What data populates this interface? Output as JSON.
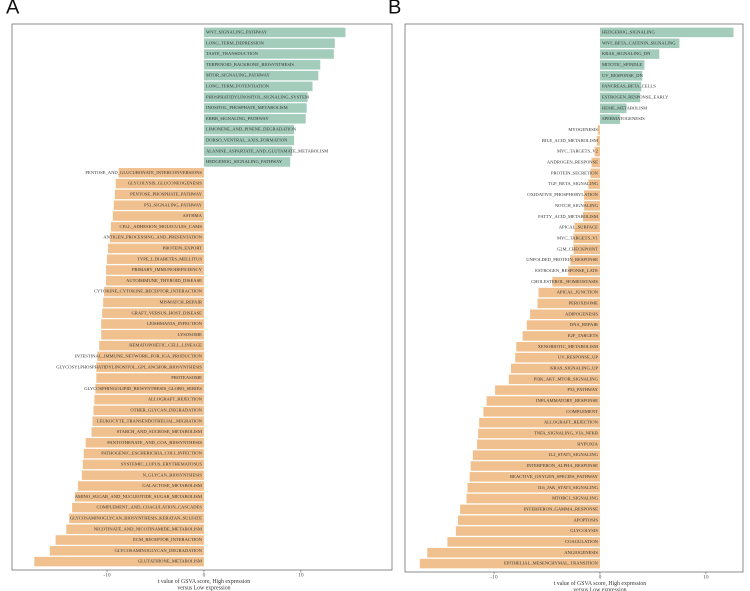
{
  "chart_data": [
    {
      "type": "bar",
      "orientation": "horizontal",
      "panel_label": "A",
      "categories": [
        "WNT_SIGNALING_PATHWAY",
        "LONG_TERM_DEPRESSION",
        "TASTE_TRANSDUCTION",
        "TERPENOID_BACKBONE_BIOSYNTHESIS",
        "MTOR_SIGNALING_PATHWAY",
        "LONG_TERM_POTENTIATION",
        "PHOSPHATIDYLINOSITOL_SIGNALING_SYSTEM",
        "INOSITOL_PHOSPHATE_METABOLISM",
        "ERBB_SIGNALING_PATHWAY",
        "LIMONENE_AND_PINENE_DEGRADATION",
        "DORSO_VENTRAL_AXIS_FORMATION",
        "ALANINE_ASPARTATE_AND_GLUTAMATE_METABOLISM",
        "HEDGEHOG_SIGNALING_PATHWAY",
        "PENTOSE_AND_GLUCURONATE_INTERCONVERSIONS",
        "GLYCOLYSIS_GLUCONEOGENESIS",
        "PENTOSE_PHOSPHATE_PATHWAY",
        "P53_SIGNALING_PATHWAY",
        "ASTHMA",
        "CELL_ADHESION_MOLECULES_CAMS",
        "ANTIGEN_PROCESSING_AND_PRESENTATION",
        "PROTEIN_EXPORT",
        "TYPE_I_DIABETES_MELLITUS",
        "PRIMARY_IMMUNODEFICIENCY",
        "AUTOIMMUNE_THYROID_DISEASE",
        "CYTOKINE_CYTOKINE_RECEPTOR_INTERACTION",
        "MISMATCH_REPAIR",
        "GRAFT_VERSUS_HOST_DISEASE",
        "LEISHMANIA_INFECTION",
        "LYSOSOME",
        "HEMATOPOIETIC_CELL_LINEAGE",
        "INTESTINAL_IMMUNE_NETWORK_FOR_IGA_PRODUCTION",
        "GLYCOSYLPHOSPHATIDYLINOSITOL_GPI_ANCHOR_BIOSYNTHESIS",
        "PROTEASOME",
        "GLYCOSPHINGOLIPID_BIOSYNTHESIS_GLOBO_SERIES",
        "ALLOGRAFT_REJECTION",
        "OTHER_GLYCAN_DEGRADATION",
        "LEUKOCYTE_TRANSENDOTHELIAL_MIGRATION",
        "STARCH_AND_SUCROSE_METABOLISM",
        "PANTOTHENATE_AND_COA_BIOSYNTHESIS",
        "PATHOGENIC_ESCHERICHIA_COLI_INFECTION",
        "SYSTEMIC_LUPUS_ERYTHEMATOSUS",
        "N_GLYCAN_BIOSYNTHESIS",
        "GALACTOSE_METABOLISM",
        "AMINO_SUGAR_AND_NUCLEOTIDE_SUGAR_METABOLISM",
        "COMPLEMENT_AND_COAGULATION_CASCADES",
        "GLYCOSAMINOGLYCAN_BIOSYNTHESIS_KERATAN_SULFATE",
        "NICOTINATE_AND_NICOTINAMIDE_METABOLISM",
        "ECM_RECEPTOR_INTERACTION",
        "GLYCOSAMINOGLYCAN_DEGRADATION",
        "GLUTATHIONE_METABOLISM"
      ],
      "values": [
        14.6,
        13.5,
        13.4,
        12.0,
        11.8,
        11.2,
        10.7,
        10.6,
        10.5,
        9.3,
        9.3,
        9.1,
        8.9,
        -8.8,
        -9.1,
        -9.2,
        -9.3,
        -9.4,
        -9.6,
        -9.7,
        -9.9,
        -10.0,
        -10.1,
        -10.1,
        -10.3,
        -10.4,
        -10.5,
        -10.6,
        -10.6,
        -10.8,
        -11.0,
        -11.1,
        -11.1,
        -11.2,
        -11.3,
        -11.4,
        -11.5,
        -11.6,
        -12.2,
        -12.4,
        -12.5,
        -12.6,
        -13.0,
        -13.3,
        -13.6,
        -13.9,
        -14.2,
        -15.3,
        -15.9,
        -17.5
      ],
      "positive_color": "#a3ccbb",
      "negative_color": "#f0c18f",
      "xlim": [
        -19.8,
        19.4
      ],
      "xticks": [
        -10,
        0,
        10
      ],
      "xlabel": [
        "t value of GSVA score, High expression",
        "versus Low expression"
      ]
    },
    {
      "type": "bar",
      "orientation": "horizontal",
      "panel_label": "B",
      "categories": [
        "HEDGEHOG_SIGNALING",
        "WNT_BETA_CATENIN_SIGNALING",
        "KRAS_SIGNALING_DN",
        "MITOTIC_SPINDLE",
        "UV_RESPONSE_DN",
        "PANCREAS_BETA_CELLS",
        "ESTROGEN_RESPONSE_EARLY",
        "HEME_METABOLISM",
        "SPERMATOGENESIS",
        "MYOGENESIS",
        "BILE_ACID_METABOLISM",
        "MYC_TARGETS_V2",
        "ANDROGEN_RESPONSE",
        "PROTEIN_SECRETION",
        "TGF_BETA_SIGNALING",
        "OXIDATIVE_PHOSPHORYLATION",
        "NOTCH_SIGNALING",
        "FATTY_ACID_METABOLISM",
        "APICAL_SURFACE",
        "MYC_TARGETS_V1",
        "G2M_CHECKPOINT",
        "UNFOLDED_PROTEIN_RESPONSE",
        "ESTROGEN_RESPONSE_LATE",
        "CHOLESTEROL_HOMEOSTASIS",
        "APICAL_JUNCTION",
        "PEROXISOME",
        "ADIPOGENESIS",
        "DNA_REPAIR",
        "E2F_TARGETS",
        "XENOBIOTIC_METABOLISM",
        "UV_RESPONSE_UP",
        "KRAS_SIGNALING_UP",
        "PI3K_AKT_MTOR_SIGNALING",
        "P53_PATHWAY",
        "INFLAMMATORY_RESPONSE",
        "COMPLEMENT",
        "ALLOGRAFT_REJECTION",
        "TNFA_SIGNALING_VIA_NFKB",
        "HYPOXIA",
        "IL2_STAT5_SIGNALING",
        "INTERFERON_ALPHA_RESPONSE",
        "REACTIVE_OXYGEN_SPECIES_PATHWAY",
        "IL6_JAK_STAT3_SIGNALING",
        "MTORC1_SIGNALING",
        "INTERFERON_GAMMA_RESPONSE",
        "APOPTOSIS",
        "GLYCOLYSIS",
        "COAGULATION",
        "ANGIOGENESIS",
        "EPITHELIAL_MESENCHYMAL_TRANSITION"
      ],
      "values": [
        12.6,
        7.5,
        5.6,
        4.2,
        4.0,
        3.9,
        3.8,
        2.5,
        1.9,
        -0.2,
        -0.3,
        -0.5,
        -0.8,
        -0.9,
        -1.1,
        -1.5,
        -1.5,
        -1.6,
        -2.4,
        -2.5,
        -2.5,
        -2.8,
        -3.0,
        -4.5,
        -5.8,
        -5.9,
        -6.6,
        -6.9,
        -7.3,
        -7.9,
        -8.0,
        -8.4,
        -8.6,
        -9.9,
        -10.7,
        -11.0,
        -11.4,
        -11.5,
        -11.6,
        -12.0,
        -12.2,
        -12.3,
        -12.5,
        -12.6,
        -13.2,
        -13.4,
        -13.6,
        -14.4,
        -16.3,
        -17.0
      ],
      "positive_color": "#a3ccbb",
      "negative_color": "#f0c18f",
      "xlim": [
        -18.4,
        13.5
      ],
      "xticks": [
        -10,
        0,
        10
      ],
      "xlabel": [
        "t value of GSVA score, High expression",
        "versus Low expression"
      ]
    }
  ]
}
